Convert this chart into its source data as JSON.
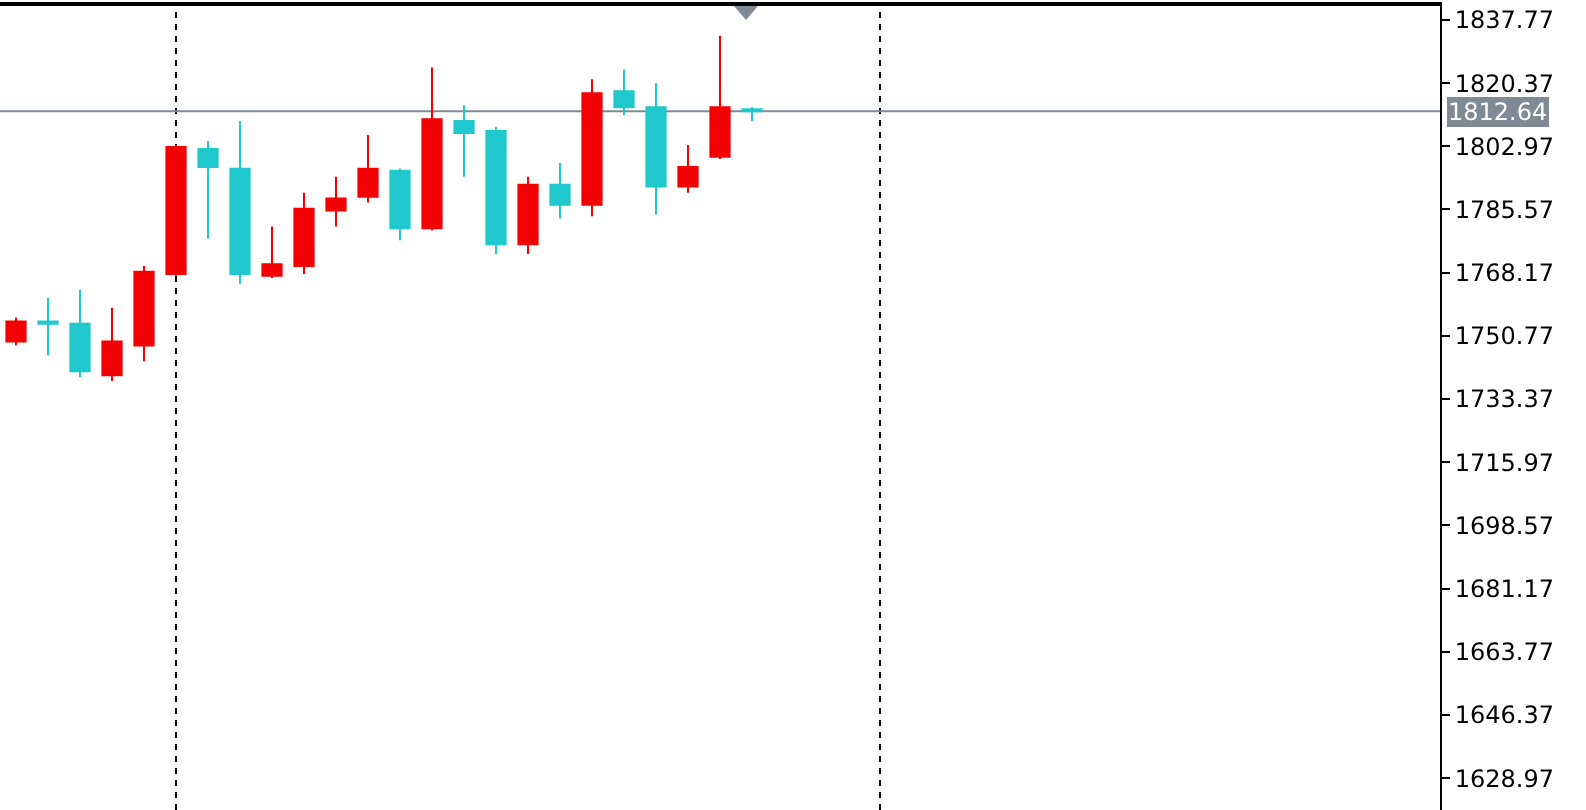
{
  "chart_data": {
    "type": "candlestick",
    "categories": [
      null,
      null,
      null,
      null,
      null,
      null,
      null,
      null,
      null,
      null,
      null,
      null,
      null,
      null,
      null,
      null,
      null,
      null,
      null,
      null,
      null,
      null,
      null,
      null,
      null,
      null,
      null,
      null,
      null,
      null,
      null,
      null,
      null,
      null,
      null,
      null,
      null,
      null,
      null,
      null,
      null,
      null,
      null,
      null,
      null
    ],
    "ohlc": [
      [
        1749.2,
        1755.8,
        1748.1,
        1754.7
      ],
      [
        1754.7,
        1761.2,
        1745.4,
        1754.1
      ],
      [
        1754.1,
        1763.4,
        1739.4,
        1741.0
      ],
      [
        1739.9,
        1758.5,
        1738.3,
        1749.2
      ],
      [
        1748.1,
        1770.0,
        1743.8,
        1768.4
      ],
      [
        1767.8,
        1803.3,
        1767.3,
        1802.8
      ],
      [
        1802.2,
        1804.4,
        1777.6,
        1797.3
      ],
      [
        1796.8,
        1809.9,
        1765.1,
        1767.8
      ],
      [
        1767.3,
        1780.9,
        1766.7,
        1770.5
      ],
      [
        1770.0,
        1790.2,
        1767.8,
        1785.8
      ],
      [
        1785.3,
        1794.6,
        1780.9,
        1788.6
      ],
      [
        1789.1,
        1806.1,
        1787.5,
        1796.8
      ],
      [
        1796.2,
        1796.8,
        1777.1,
        1780.4
      ],
      [
        1780.4,
        1824.7,
        1779.8,
        1810.4
      ],
      [
        1809.9,
        1814.3,
        1794.6,
        1806.6
      ],
      [
        1807.2,
        1808.3,
        1773.3,
        1776.0
      ],
      [
        1776.0,
        1794.6,
        1773.3,
        1792.4
      ],
      [
        1792.4,
        1798.4,
        1783.1,
        1786.9
      ],
      [
        1786.9,
        1821.4,
        1783.7,
        1817.6
      ],
      [
        1818.1,
        1824.1,
        1811.5,
        1813.7
      ],
      [
        1813.7,
        1820.3,
        1784.2,
        1791.9
      ],
      [
        1791.9,
        1803.3,
        1790.2,
        1797.3
      ],
      [
        1800.1,
        1833.4,
        1799.5,
        1813.7
      ],
      [
        1813.2,
        1813.7,
        1809.9,
        1812.64
      ],
      null,
      null,
      null,
      null,
      null,
      null,
      null,
      null,
      null,
      null,
      null,
      null,
      null,
      null,
      null,
      null,
      null,
      null,
      null,
      null,
      null
    ],
    "colors": [
      "#f50000",
      "#1ec8cc",
      "#1ec8cc",
      "#f50000",
      "#f50000",
      "#f50000",
      "#1ec8cc",
      "#1ec8cc",
      "#f50000",
      "#f50000",
      "#f50000",
      "#f50000",
      "#1ec8cc",
      "#f50000",
      "#1ec8cc",
      "#1ec8cc",
      "#f50000",
      "#1ec8cc",
      "#f50000",
      "#1ec8cc",
      "#1ec8cc",
      "#f50000",
      "#f50000",
      "#1ec8cc",
      null,
      null,
      null,
      null,
      null,
      null,
      null,
      null,
      null,
      null,
      null,
      null,
      null,
      null,
      null,
      null,
      null,
      null,
      null,
      null,
      null
    ],
    "ylim": [
      1620.2,
      1841.6
    ],
    "yticks": [
      1837.77,
      1820.37,
      1802.97,
      1785.57,
      1768.17,
      1750.77,
      1733.37,
      1715.97,
      1698.57,
      1681.17,
      1663.77,
      1646.37,
      1628.97
    ],
    "ref_lines": [
      {
        "axis": "y",
        "value": 1812.64,
        "label": "1812.64",
        "color": "#7f8a96"
      }
    ],
    "grid": false
  }
}
